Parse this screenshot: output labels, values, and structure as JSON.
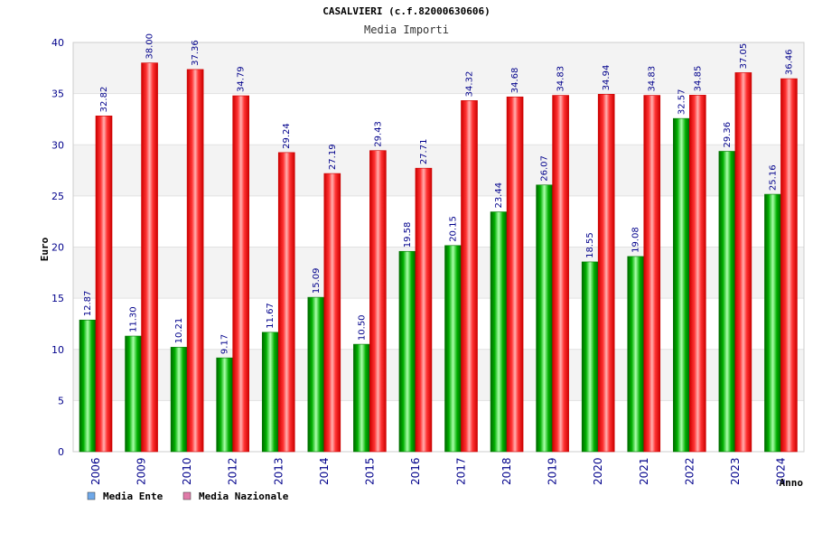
{
  "chart_data": {
    "type": "bar",
    "title": "CASALVIERI (c.f.82000630606)",
    "subtitle": "Media Importi",
    "xlabel": "Anno",
    "ylabel": "Euro",
    "ylim": [
      0,
      40
    ],
    "yticks": [
      0,
      5,
      10,
      15,
      20,
      25,
      30,
      35,
      40
    ],
    "grid": true,
    "legend_position": "bottom-left",
    "categories": [
      "2006",
      "2009",
      "2010",
      "2012",
      "2013",
      "2014",
      "2015",
      "2016",
      "2017",
      "2018",
      "2019",
      "2020",
      "2021",
      "2022",
      "2023",
      "2024"
    ],
    "series": [
      {
        "name": "Media Ente",
        "color": "#00cc00",
        "legend_color": "#6fa8e8",
        "values": [
          12.87,
          11.3,
          10.21,
          9.17,
          11.67,
          15.09,
          10.5,
          19.58,
          20.15,
          23.44,
          26.07,
          18.55,
          19.08,
          32.57,
          29.36,
          25.16
        ],
        "labels": [
          "12.87",
          "11.30",
          "10.21",
          "9.17",
          "11.67",
          "15.09",
          "10.50",
          "19.58",
          "20.15",
          "23.44",
          "26.07",
          "18.55",
          "19.08",
          "32.57",
          "29.36",
          "25.16"
        ]
      },
      {
        "name": "Media Nazionale",
        "color": "#ee0000",
        "legend_color": "#e07aa8",
        "values": [
          32.82,
          38.0,
          37.36,
          34.79,
          29.24,
          27.19,
          29.43,
          27.71,
          34.32,
          34.68,
          34.83,
          34.94,
          34.83,
          34.85,
          37.05,
          36.46
        ],
        "labels": [
          "32.82",
          "38.00",
          "37.36",
          "34.79",
          "29.24",
          "27.19",
          "29.43",
          "27.71",
          "34.32",
          "34.68",
          "34.83",
          "34.94",
          "34.83",
          "34.85",
          "37.05",
          "36.46"
        ]
      }
    ]
  }
}
